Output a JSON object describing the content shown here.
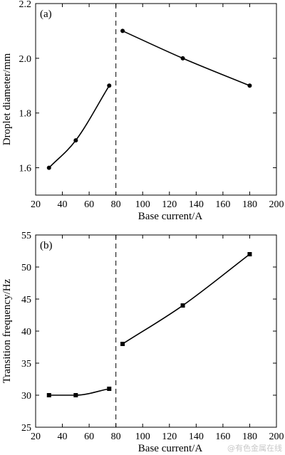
{
  "chart_data": [
    {
      "type": "line",
      "panel_label": "(a)",
      "xlabel": "Base current/A",
      "ylabel": "Droplet diameter/mm",
      "xlim": [
        20,
        200
      ],
      "ylim": [
        1.5,
        2.2
      ],
      "xticks": [
        20,
        40,
        60,
        80,
        100,
        120,
        140,
        160,
        180,
        200
      ],
      "yticks": [
        1.6,
        1.8,
        2.0,
        2.2
      ],
      "ytick_labels": [
        "1.6",
        "1.8",
        "2.0",
        "2.2"
      ],
      "divider_x": 80,
      "marker": "circle",
      "grid": false,
      "series": [
        {
          "x": [
            30,
            50,
            75
          ],
          "y": [
            1.6,
            1.7,
            1.9
          ]
        },
        {
          "x": [
            85,
            130,
            180
          ],
          "y": [
            2.1,
            2.0,
            1.9
          ]
        }
      ]
    },
    {
      "type": "line",
      "panel_label": "(b)",
      "xlabel": "Base current/A",
      "ylabel": "Transition frequency/Hz",
      "xlim": [
        20,
        200
      ],
      "ylim": [
        25,
        55
      ],
      "xticks": [
        20,
        40,
        60,
        80,
        100,
        120,
        140,
        160,
        180,
        200
      ],
      "yticks": [
        25,
        30,
        35,
        40,
        45,
        50,
        55
      ],
      "ytick_labels": [
        "25",
        "30",
        "35",
        "40",
        "45",
        "50",
        "55"
      ],
      "divider_x": 80,
      "marker": "square",
      "grid": false,
      "series": [
        {
          "x": [
            30,
            50,
            75
          ],
          "y": [
            30,
            30,
            31
          ]
        },
        {
          "x": [
            85,
            130,
            180
          ],
          "y": [
            38,
            44,
            52
          ]
        }
      ]
    }
  ],
  "watermark": "@有色金属在线"
}
